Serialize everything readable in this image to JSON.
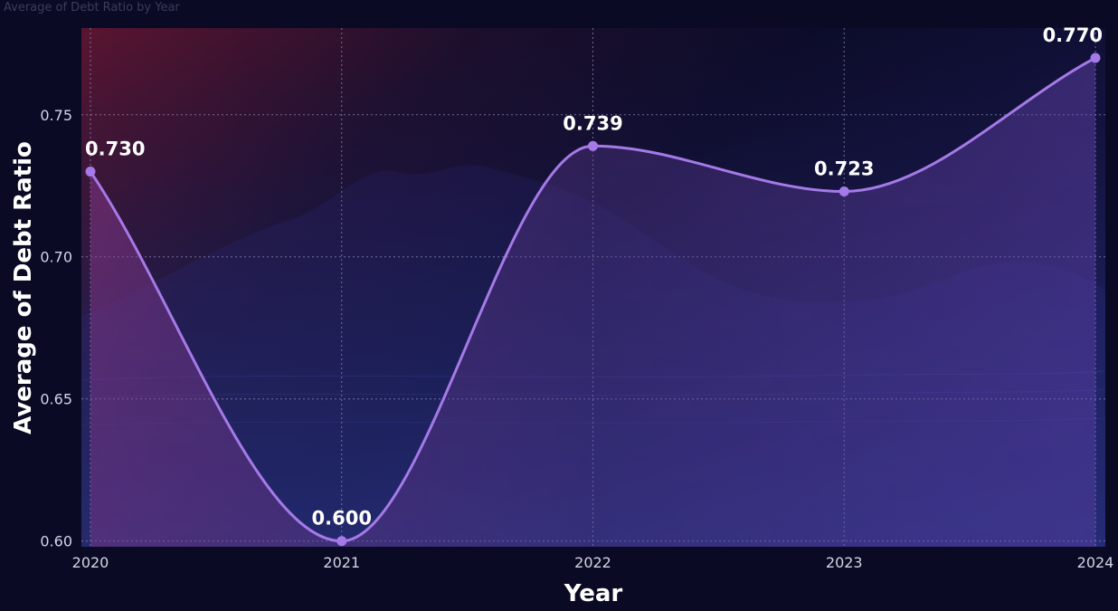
{
  "title": "Average of Debt Ratio by Year",
  "chart_data": {
    "type": "line",
    "title": "Average of Debt Ratio by Year",
    "xlabel": "Year",
    "ylabel": "Average of Debt Ratio",
    "categories": [
      "2020",
      "2021",
      "2022",
      "2023",
      "2024"
    ],
    "series": [
      {
        "values": [
          0.73,
          0.6,
          0.739,
          0.723,
          0.77
        ],
        "labels": [
          "0.730",
          "0.600",
          "0.739",
          "0.723",
          "0.770"
        ]
      }
    ],
    "y_ticks": [
      "0.60",
      "0.65",
      "0.70",
      "0.75"
    ],
    "y_tick_values": [
      0.6,
      0.65,
      0.7,
      0.75
    ],
    "ylim": [
      0.598,
      0.7805
    ],
    "grid": true,
    "line_color": "#a57ae8",
    "marker_color": "#a57ae8",
    "smooth": true
  }
}
